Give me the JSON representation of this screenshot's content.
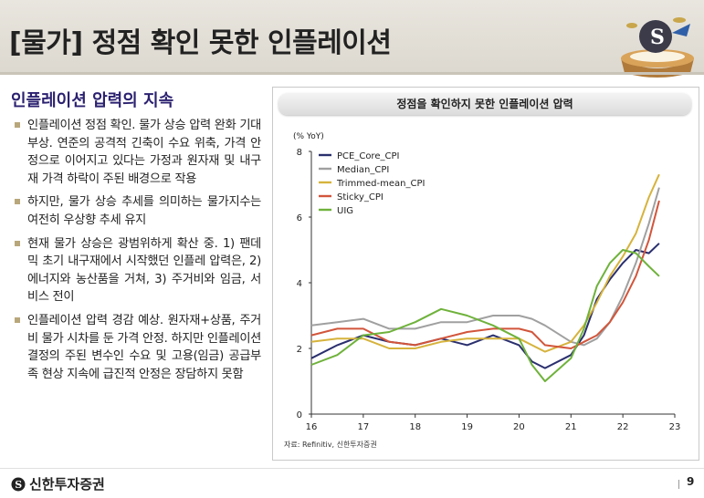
{
  "slide": {
    "title": "[물가] 정점 확인 못한 인플레이션",
    "section_heading": "인플레이션 압력의 지속",
    "bullets": [
      "인플레이션 정점 확인. 물가 상승 압력 완화 기대 부상. 연준의 공격적 긴축이 수요 위축, 가격 안정으로 이어지고 있다는 가정과 원자재 및 내구재 가격 하락이 주된 배경으로 작용",
      "하지만, 물가 상승 추세를 의미하는 물가지수는 여전히 우상향 추세 유지",
      "현재 물가 상승은 광범위하게 확산 중. 1) 팬데믹 초기 내구재에서 시작했던 인플레 압력은, 2) 에너지와 농산품을 거쳐, 3) 주거비와 임금, 서비스 전이",
      "인플레이션 압력 경감 예상. 원자재+상품, 주거비 물가 시차를 둔 가격 안정. 하지만 인플레이션 결정의 주된 변수인 수요 및 고용(임금) 공급부족 현상 지속에 급진적 안정은 장담하지 못함"
    ]
  },
  "chart_panel": {
    "header": "정점을 확인하지 못한 인플레이션 압력",
    "source": "자료: Refinitiv, 신한투자증권"
  },
  "footer": {
    "brand": "신한투자증권",
    "page_number": "9"
  },
  "chart_data": {
    "type": "line",
    "title": "정점을 확인하지 못한 인플레이션 압력",
    "ylabel": "(% YoY)",
    "xlabel": "",
    "ylim": [
      0,
      8
    ],
    "xlim": [
      16,
      23
    ],
    "y_ticks": [
      "0",
      "2",
      "4",
      "6",
      "8"
    ],
    "x_ticks": [
      "16",
      "17",
      "18",
      "19",
      "20",
      "21",
      "22",
      "23"
    ],
    "legend_position": "top-left",
    "grid": false,
    "x": [
      16.0,
      16.5,
      17.0,
      17.5,
      18.0,
      18.5,
      19.0,
      19.5,
      20.0,
      20.25,
      20.5,
      21.0,
      21.25,
      21.5,
      21.75,
      22.0,
      22.25,
      22.5,
      22.7
    ],
    "series": [
      {
        "name": "PCE_Core_CPI",
        "color": "#2a2f6e",
        "values": [
          1.7,
          2.1,
          2.4,
          2.2,
          2.1,
          2.3,
          2.1,
          2.4,
          2.1,
          1.6,
          1.4,
          1.8,
          2.4,
          3.5,
          4.1,
          4.6,
          5.0,
          4.9,
          5.2
        ]
      },
      {
        "name": "Median_CPI",
        "color": "#a0a0a0",
        "values": [
          2.7,
          2.8,
          2.9,
          2.6,
          2.6,
          2.8,
          2.8,
          3.0,
          3.0,
          2.9,
          2.7,
          2.2,
          2.1,
          2.3,
          2.8,
          3.6,
          4.6,
          5.8,
          6.9
        ]
      },
      {
        "name": "Trimmed-mean_CPI",
        "color": "#d6b33c",
        "values": [
          2.2,
          2.3,
          2.3,
          2.0,
          2.0,
          2.2,
          2.3,
          2.3,
          2.3,
          2.1,
          1.9,
          2.2,
          2.7,
          3.4,
          4.2,
          4.8,
          5.5,
          6.6,
          7.3
        ]
      },
      {
        "name": "Sticky_CPI",
        "color": "#d2553b",
        "values": [
          2.4,
          2.6,
          2.6,
          2.2,
          2.1,
          2.3,
          2.5,
          2.6,
          2.6,
          2.5,
          2.1,
          2.0,
          2.2,
          2.4,
          2.8,
          3.4,
          4.2,
          5.3,
          6.5
        ]
      },
      {
        "name": "UIG",
        "color": "#6fb23b",
        "values": [
          1.5,
          1.8,
          2.4,
          2.5,
          2.8,
          3.2,
          3.0,
          2.7,
          2.3,
          1.5,
          1.0,
          1.7,
          2.6,
          3.9,
          4.6,
          5.0,
          4.9,
          4.5,
          4.2
        ]
      }
    ]
  }
}
